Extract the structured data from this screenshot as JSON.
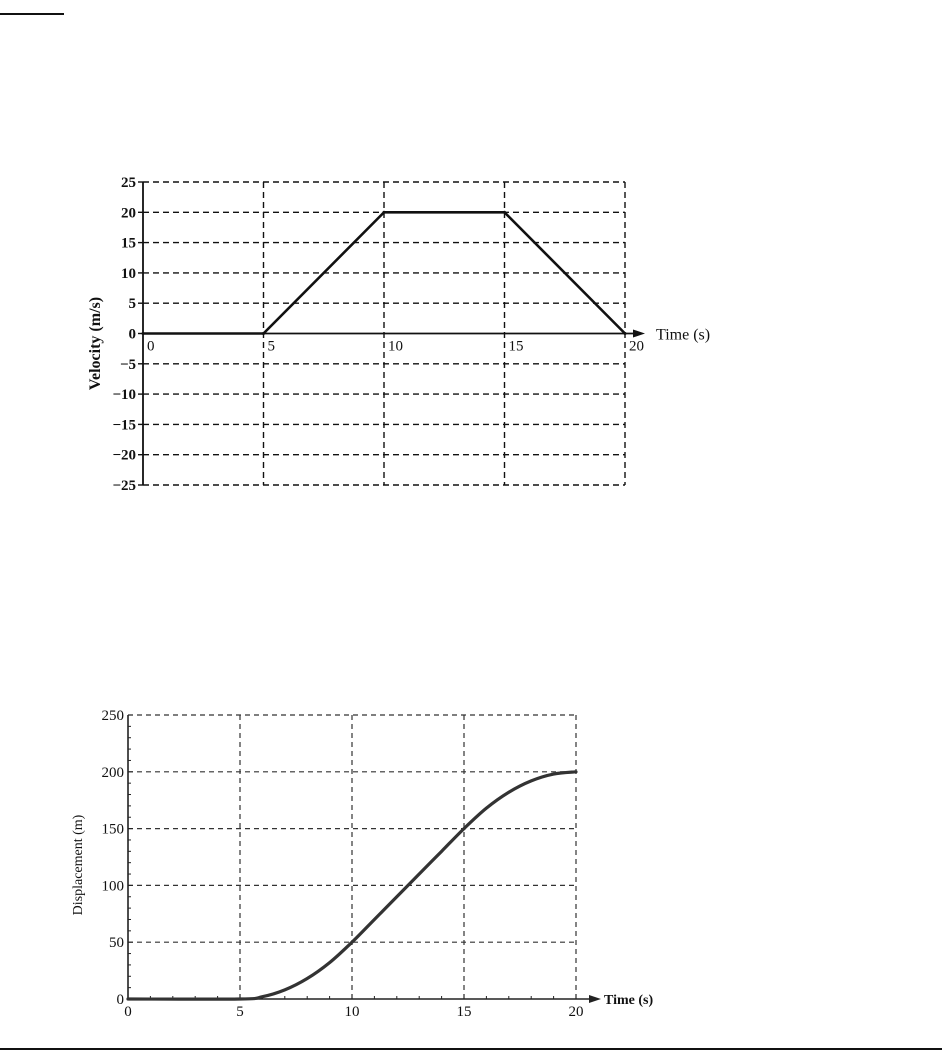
{
  "chart_data": [
    {
      "type": "line",
      "xlabel": "Time (s)",
      "ylabel": "Velocity (m/s)",
      "xlim": [
        0,
        20
      ],
      "ylim": [
        -25,
        25
      ],
      "x_ticks": [
        "0",
        "5",
        "10",
        "15",
        "20"
      ],
      "y_ticks": [
        "25",
        "20",
        "15",
        "10",
        "5",
        "0",
        "−5",
        "−10",
        "−15",
        "−20",
        "−25"
      ],
      "grid": true,
      "series": [
        {
          "x": [
            0,
            5,
            10,
            15,
            20
          ],
          "values": [
            0,
            0,
            20,
            20,
            0
          ]
        }
      ]
    },
    {
      "type": "line",
      "xlabel": "Time (s)",
      "ylabel": "Displacement (m)",
      "xlim": [
        0,
        20
      ],
      "ylim": [
        0,
        250
      ],
      "x_ticks": [
        "0",
        "5",
        "10",
        "15",
        "20"
      ],
      "y_ticks": [
        "250",
        "200",
        "150",
        "100",
        "50",
        "0"
      ],
      "grid": true,
      "series": [
        {
          "x": [
            0,
            5,
            6,
            7,
            8,
            9,
            10,
            11,
            12,
            13,
            14,
            15,
            16,
            17,
            18,
            19,
            20
          ],
          "values": [
            0,
            0,
            2,
            8,
            18,
            32,
            50,
            70,
            90,
            110,
            130,
            150,
            168,
            182,
            192,
            198,
            200
          ]
        }
      ]
    }
  ]
}
